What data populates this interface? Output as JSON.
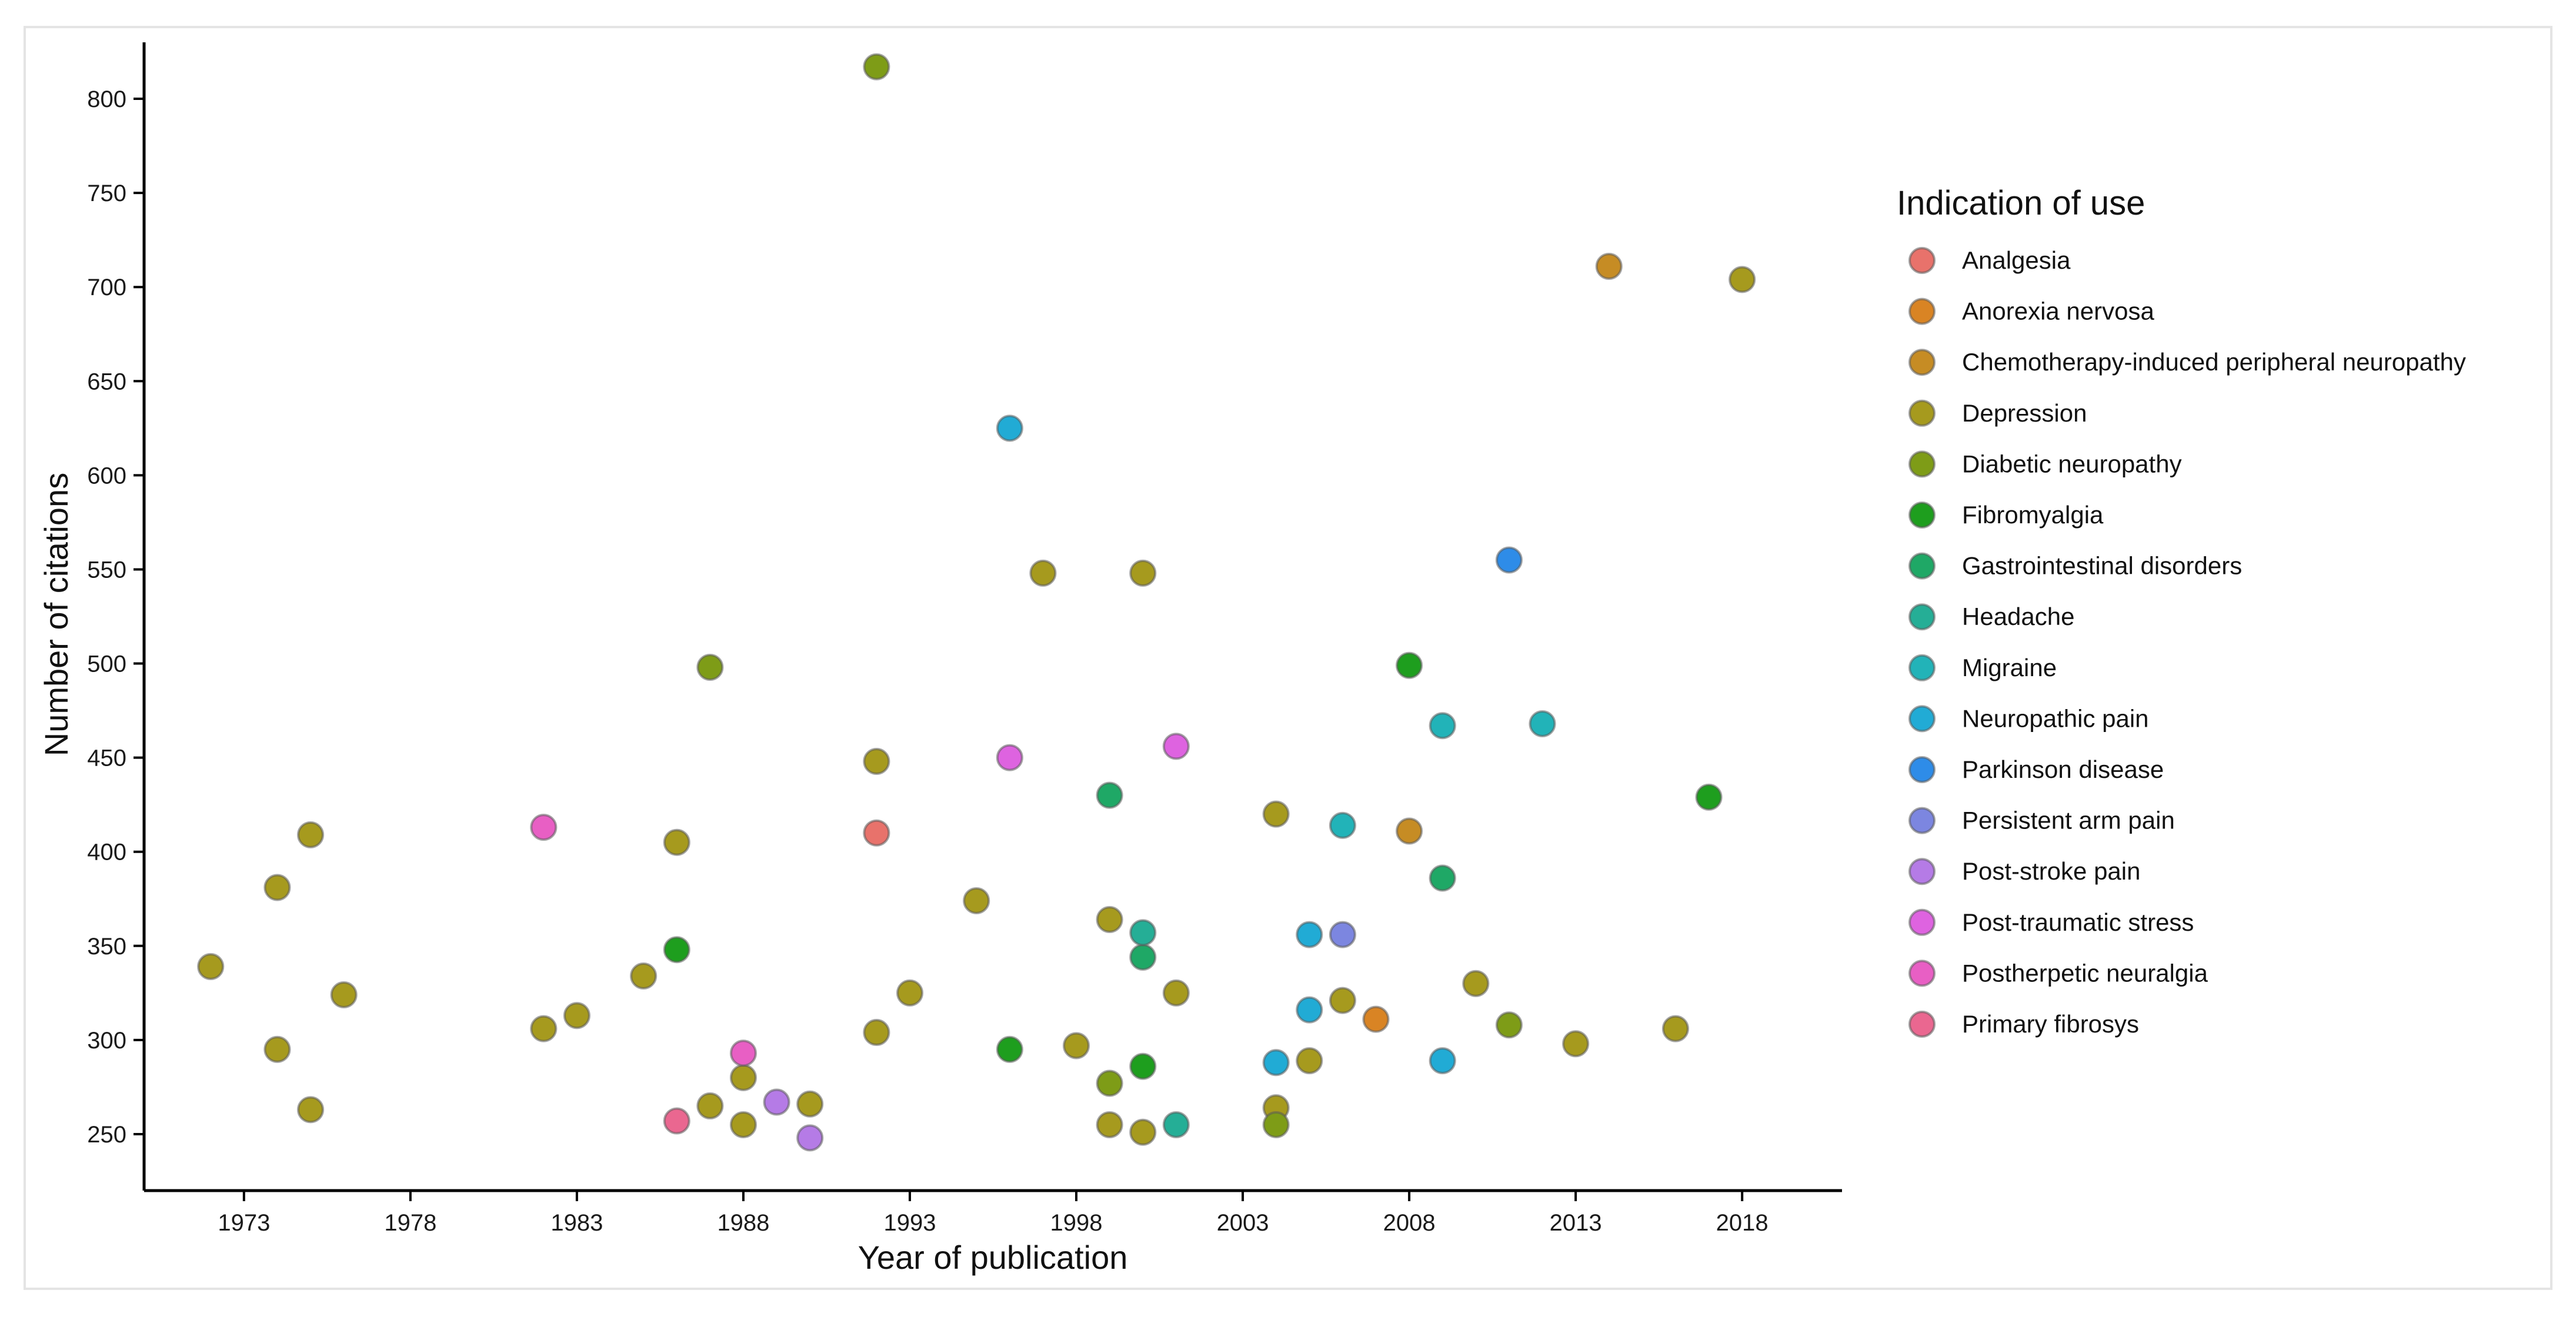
{
  "chart_data": {
    "type": "scatter",
    "title": "",
    "xlabel": "Year of publication",
    "ylabel": "Number of citations",
    "xlim": [
      1970,
      2021
    ],
    "ylim": [
      220,
      830
    ],
    "xticks": [
      1973,
      1978,
      1983,
      1988,
      1993,
      1998,
      2003,
      2008,
      2013,
      2018
    ],
    "yticks": [
      250,
      300,
      350,
      400,
      450,
      500,
      550,
      600,
      650,
      700,
      750,
      800
    ],
    "legend_title": "Indication of use",
    "legend_position": "right",
    "series": [
      {
        "name": "Analgesia",
        "color": "#E8726B",
        "points": [
          [
            1992,
            410
          ]
        ]
      },
      {
        "name": "Anorexia nervosa",
        "color": "#D98424",
        "points": [
          [
            2007,
            311
          ]
        ]
      },
      {
        "name": "Chemotherapy-induced peripheral neuropathy",
        "color": "#C68C24",
        "points": [
          [
            2014,
            711
          ],
          [
            2008,
            411
          ]
        ]
      },
      {
        "name": "Depression",
        "color": "#A69A1E",
        "points": [
          [
            1972,
            339
          ],
          [
            1974,
            381
          ],
          [
            1974,
            295
          ],
          [
            1975,
            409
          ],
          [
            1975,
            263
          ],
          [
            1976,
            324
          ],
          [
            1982,
            306
          ],
          [
            1983,
            313
          ],
          [
            1985,
            334
          ],
          [
            1986,
            405
          ],
          [
            1987,
            265
          ],
          [
            1988,
            280
          ],
          [
            1988,
            255
          ],
          [
            1990,
            266
          ],
          [
            1992,
            448
          ],
          [
            1992,
            304
          ],
          [
            1993,
            325
          ],
          [
            1995,
            374
          ],
          [
            1997,
            548
          ],
          [
            1998,
            297
          ],
          [
            1999,
            364
          ],
          [
            1999,
            255
          ],
          [
            2000,
            548
          ],
          [
            2000,
            251
          ],
          [
            2001,
            325
          ],
          [
            2004,
            420
          ],
          [
            2004,
            264
          ],
          [
            2005,
            289
          ],
          [
            2006,
            321
          ],
          [
            2010,
            330
          ],
          [
            2013,
            298
          ],
          [
            2016,
            306
          ],
          [
            2018,
            704
          ]
        ]
      },
      {
        "name": "Diabetic neuropathy",
        "color": "#7E9C17",
        "points": [
          [
            1992,
            817
          ],
          [
            1987,
            498
          ],
          [
            1999,
            277
          ],
          [
            2004,
            255
          ],
          [
            2011,
            308
          ]
        ]
      },
      {
        "name": "Fibromyalgia",
        "color": "#1E9E1E",
        "points": [
          [
            1986,
            348
          ],
          [
            1996,
            295
          ],
          [
            2000,
            286
          ],
          [
            2008,
            499
          ],
          [
            2017,
            429
          ]
        ]
      },
      {
        "name": "Gastrointestinal disorders",
        "color": "#1FA866",
        "points": [
          [
            1999,
            430
          ],
          [
            2009,
            386
          ],
          [
            2000,
            344
          ]
        ]
      },
      {
        "name": "Headache",
        "color": "#25AE96",
        "points": [
          [
            2000,
            357
          ],
          [
            2001,
            255
          ]
        ]
      },
      {
        "name": "Migraine",
        "color": "#22B3B8",
        "points": [
          [
            2009,
            467
          ],
          [
            2012,
            468
          ],
          [
            2006,
            414
          ]
        ]
      },
      {
        "name": "Neuropathic pain",
        "color": "#21ABD5",
        "points": [
          [
            1996,
            625
          ],
          [
            2005,
            356
          ],
          [
            2005,
            316
          ],
          [
            2004,
            288
          ],
          [
            2009,
            289
          ]
        ]
      },
      {
        "name": "Parkinson disease",
        "color": "#2E8CE8",
        "points": [
          [
            2011,
            555
          ]
        ]
      },
      {
        "name": "Persistent arm pain",
        "color": "#7C86E0",
        "points": [
          [
            2006,
            356
          ]
        ]
      },
      {
        "name": "Post-stroke pain",
        "color": "#B57BE6",
        "points": [
          [
            1989,
            267
          ],
          [
            1990,
            248
          ]
        ]
      },
      {
        "name": "Post-traumatic stress",
        "color": "#DE63E0",
        "points": [
          [
            1996,
            450
          ],
          [
            2001,
            456
          ]
        ]
      },
      {
        "name": "Postherpetic neuralgia",
        "color": "#E85FC4",
        "points": [
          [
            1982,
            413
          ],
          [
            1988,
            293
          ]
        ]
      },
      {
        "name": "Primary fibrosys",
        "color": "#EA6790",
        "points": [
          [
            1986,
            257
          ]
        ]
      }
    ]
  }
}
